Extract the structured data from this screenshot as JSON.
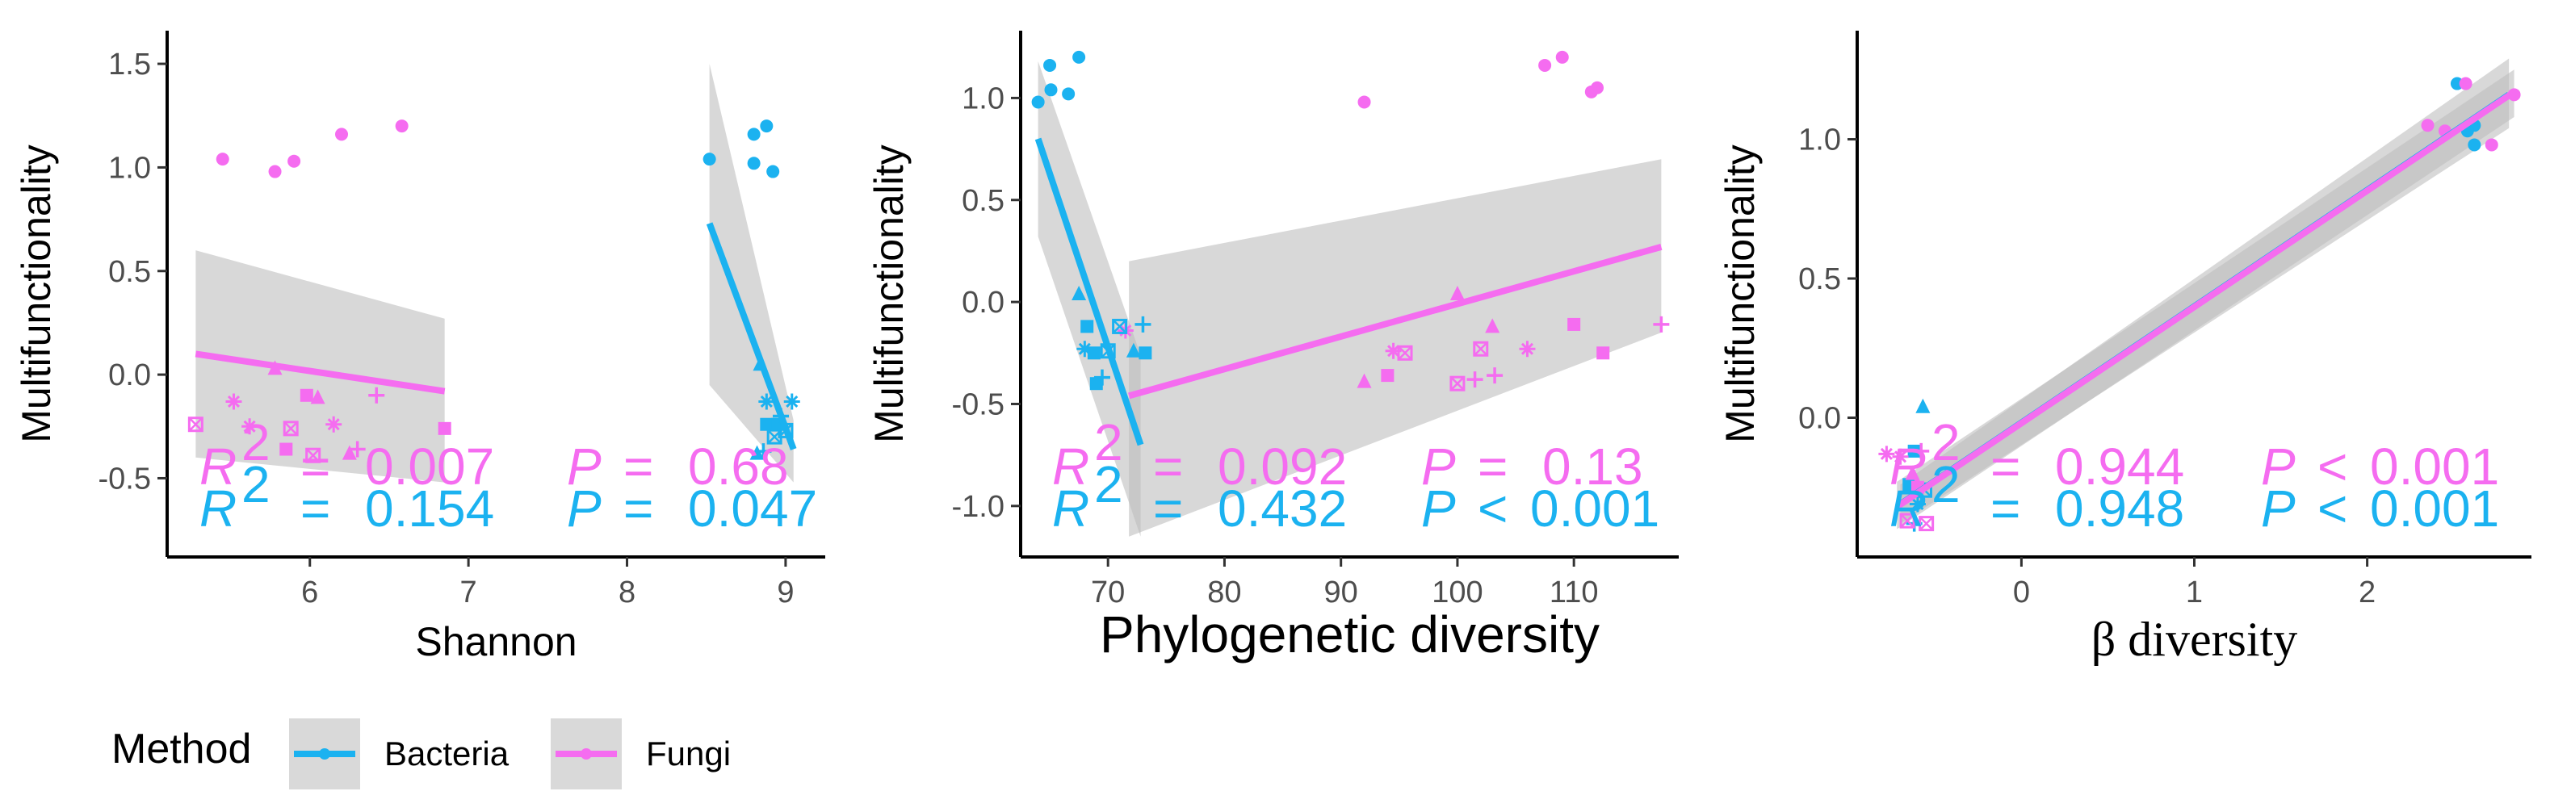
{
  "chart_data": [
    {
      "type": "scatter",
      "title": "",
      "xlabel": "Shannon",
      "ylabel": "Multifunctionality",
      "xlim": [
        5.1,
        9.25
      ],
      "ylim": [
        -0.88,
        1.66
      ],
      "xticks": [
        6,
        7,
        8,
        9
      ],
      "yticks": [
        -0.5,
        0.0,
        0.5,
        1.0,
        1.5
      ],
      "xtick_labels": [
        "6",
        "7",
        "8",
        "9"
      ],
      "ytick_labels": [
        "-0.5",
        "0.0",
        "0.5",
        "1.0",
        "1.5"
      ],
      "series": [
        {
          "name": "Fungi",
          "fit": {
            "x": [
              5.28,
              6.85
            ],
            "y": [
              0.1,
              -0.08
            ],
            "ci_upper": [
              0.6,
              0.27
            ],
            "ci_lower": [
              -0.4,
              -0.52
            ]
          },
          "points": [
            {
              "x": 5.45,
              "y": 1.04,
              "shape": "circle"
            },
            {
              "x": 5.78,
              "y": 0.98,
              "shape": "circle"
            },
            {
              "x": 5.9,
              "y": 1.03,
              "shape": "circle"
            },
            {
              "x": 6.2,
              "y": 1.16,
              "shape": "circle"
            },
            {
              "x": 6.58,
              "y": 1.2,
              "shape": "circle"
            },
            {
              "x": 5.28,
              "y": -0.24,
              "shape": "boxx"
            },
            {
              "x": 5.52,
              "y": -0.13,
              "shape": "asterisk"
            },
            {
              "x": 5.62,
              "y": -0.25,
              "shape": "asterisk"
            },
            {
              "x": 5.78,
              "y": 0.03,
              "shape": "triangle"
            },
            {
              "x": 5.85,
              "y": -0.36,
              "shape": "square"
            },
            {
              "x": 5.88,
              "y": -0.26,
              "shape": "boxx"
            },
            {
              "x": 5.98,
              "y": -0.1,
              "shape": "square"
            },
            {
              "x": 6.05,
              "y": -0.11,
              "shape": "triangle"
            },
            {
              "x": 6.02,
              "y": -0.39,
              "shape": "boxx"
            },
            {
              "x": 6.15,
              "y": -0.24,
              "shape": "asterisk"
            },
            {
              "x": 6.3,
              "y": -0.36,
              "shape": "plus"
            },
            {
              "x": 6.25,
              "y": -0.38,
              "shape": "triangle"
            },
            {
              "x": 6.42,
              "y": -0.1,
              "shape": "plus"
            },
            {
              "x": 6.85,
              "y": -0.26,
              "shape": "square"
            }
          ]
        },
        {
          "name": "Bacteria",
          "fit": {
            "x": [
              8.52,
              9.05
            ],
            "y": [
              0.73,
              -0.36
            ],
            "ci_upper": [
              1.5,
              -0.22
            ],
            "ci_lower": [
              -0.05,
              -0.52
            ]
          },
          "points": [
            {
              "x": 8.52,
              "y": 1.04,
              "shape": "circle"
            },
            {
              "x": 8.8,
              "y": 1.16,
              "shape": "circle"
            },
            {
              "x": 8.88,
              "y": 1.2,
              "shape": "circle"
            },
            {
              "x": 8.8,
              "y": 1.02,
              "shape": "circle"
            },
            {
              "x": 8.92,
              "y": 0.98,
              "shape": "circle"
            },
            {
              "x": 8.84,
              "y": 0.05,
              "shape": "triangle"
            },
            {
              "x": 8.88,
              "y": -0.13,
              "shape": "asterisk"
            },
            {
              "x": 9.04,
              "y": -0.13,
              "shape": "asterisk"
            },
            {
              "x": 8.88,
              "y": -0.24,
              "shape": "square"
            },
            {
              "x": 8.95,
              "y": -0.24,
              "shape": "square"
            },
            {
              "x": 8.93,
              "y": -0.3,
              "shape": "boxx"
            },
            {
              "x": 8.82,
              "y": -0.38,
              "shape": "triangle"
            },
            {
              "x": 8.86,
              "y": -0.37,
              "shape": "plus"
            },
            {
              "x": 9.0,
              "y": -0.27,
              "shape": "boxx"
            },
            {
              "x": 8.97,
              "y": -0.2,
              "shape": "plus"
            }
          ]
        }
      ],
      "annotations": [
        {
          "name": "Fungi",
          "r2": "0.007",
          "p": "0.68"
        },
        {
          "name": "Bacteria",
          "r2": "0.154",
          "p": "0.047"
        }
      ]
    },
    {
      "type": "scatter",
      "title": "",
      "xlabel": "Phylogenetic diversity",
      "ylabel": "Multifunctionality",
      "xlim": [
        62.5,
        119
      ],
      "ylim": [
        -1.25,
        1.33
      ],
      "xticks": [
        70,
        80,
        90,
        100,
        110
      ],
      "yticks": [
        -1.0,
        -0.5,
        0.0,
        0.5,
        1.0
      ],
      "xtick_labels": [
        "70",
        "80",
        "90",
        "100",
        "110"
      ],
      "ytick_labels": [
        "-1.0",
        "-0.5",
        "0.0",
        "0.5",
        "1.0"
      ],
      "series": [
        {
          "name": "Fungi",
          "fit": {
            "x": [
              71.8,
              117.5
            ],
            "y": [
              -0.46,
              0.27
            ],
            "ci_upper": [
              0.2,
              0.7
            ],
            "ci_lower": [
              -1.15,
              -0.15
            ]
          },
          "points": [
            {
              "x": 92,
              "y": 0.98,
              "shape": "circle"
            },
            {
              "x": 107.5,
              "y": 1.16,
              "shape": "circle"
            },
            {
              "x": 109,
              "y": 1.2,
              "shape": "circle"
            },
            {
              "x": 111.5,
              "y": 1.03,
              "shape": "circle"
            },
            {
              "x": 112,
              "y": 1.05,
              "shape": "circle"
            },
            {
              "x": 92,
              "y": -0.39,
              "shape": "triangle"
            },
            {
              "x": 94,
              "y": -0.36,
              "shape": "square"
            },
            {
              "x": 94.5,
              "y": -0.24,
              "shape": "asterisk"
            },
            {
              "x": 95.5,
              "y": -0.25,
              "shape": "boxx"
            },
            {
              "x": 100,
              "y": 0.04,
              "shape": "triangle"
            },
            {
              "x": 100,
              "y": -0.4,
              "shape": "boxx"
            },
            {
              "x": 101.5,
              "y": -0.38,
              "shape": "plus"
            },
            {
              "x": 102,
              "y": -0.23,
              "shape": "boxx"
            },
            {
              "x": 103.2,
              "y": -0.36,
              "shape": "plus"
            },
            {
              "x": 103,
              "y": -0.12,
              "shape": "triangle"
            },
            {
              "x": 106,
              "y": -0.23,
              "shape": "asterisk"
            },
            {
              "x": 110,
              "y": -0.11,
              "shape": "square"
            },
            {
              "x": 112.5,
              "y": -0.25,
              "shape": "square"
            },
            {
              "x": 117.5,
              "y": -0.11,
              "shape": "plus"
            },
            {
              "x": 71.5,
              "y": -0.14,
              "shape": "asterisk"
            }
          ]
        },
        {
          "name": "Bacteria",
          "fit": {
            "x": [
              64,
              72.8
            ],
            "y": [
              0.8,
              -0.7
            ],
            "ci_upper": [
              1.18,
              -0.26
            ],
            "ci_lower": [
              0.32,
              -1.15
            ]
          },
          "points": [
            {
              "x": 64,
              "y": 0.98,
              "shape": "circle"
            },
            {
              "x": 65,
              "y": 1.16,
              "shape": "circle"
            },
            {
              "x": 65.1,
              "y": 1.04,
              "shape": "circle"
            },
            {
              "x": 66.6,
              "y": 1.02,
              "shape": "circle"
            },
            {
              "x": 67.5,
              "y": 1.2,
              "shape": "circle"
            },
            {
              "x": 67.5,
              "y": 0.04,
              "shape": "triangle"
            },
            {
              "x": 68.2,
              "y": -0.12,
              "shape": "square"
            },
            {
              "x": 68,
              "y": -0.23,
              "shape": "asterisk"
            },
            {
              "x": 68.8,
              "y": -0.25,
              "shape": "square"
            },
            {
              "x": 69,
              "y": -0.4,
              "shape": "square"
            },
            {
              "x": 69.5,
              "y": -0.37,
              "shape": "plus"
            },
            {
              "x": 70,
              "y": -0.24,
              "shape": "boxx"
            },
            {
              "x": 71,
              "y": -0.12,
              "shape": "boxx"
            },
            {
              "x": 72.2,
              "y": -0.24,
              "shape": "triangle"
            },
            {
              "x": 73,
              "y": -0.11,
              "shape": "plus"
            },
            {
              "x": 73.2,
              "y": -0.25,
              "shape": "square"
            }
          ]
        }
      ],
      "annotations": [
        {
          "name": "Fungi",
          "r2": "0.092",
          "p": "0.13"
        },
        {
          "name": "Bacteria",
          "r2": "0.432",
          "p": "0.001"
        }
      ]
    },
    {
      "type": "scatter",
      "title": "",
      "xlabel": "β diversity",
      "ylabel": "Multifunctionality",
      "xlim": [
        -0.95,
        2.95
      ],
      "ylim": [
        -0.5,
        1.39
      ],
      "xticks": [
        0,
        1,
        2
      ],
      "yticks": [
        0.0,
        0.5,
        1.0
      ],
      "xtick_labels": [
        "0",
        "1",
        "2"
      ],
      "ytick_labels": [
        "0.0",
        "0.5",
        "1.0"
      ],
      "series": [
        {
          "name": "Bacteria",
          "fit": {
            "x": [
              -0.7,
              2.82
            ],
            "y": [
              -0.31,
              1.16
            ],
            "ci_upper": [
              -0.24,
              1.29
            ],
            "ci_lower": [
              -0.38,
              1.04
            ]
          },
          "points": [
            {
              "x": 2.52,
              "y": 1.2,
              "shape": "circle"
            },
            {
              "x": 2.62,
              "y": 1.05,
              "shape": "circle"
            },
            {
              "x": 2.58,
              "y": 1.03,
              "shape": "circle"
            },
            {
              "x": 2.62,
              "y": 0.98,
              "shape": "circle"
            },
            {
              "x": -0.57,
              "y": 0.04,
              "shape": "triangle"
            },
            {
              "x": -0.62,
              "y": -0.12,
              "shape": "square"
            },
            {
              "x": -0.65,
              "y": -0.24,
              "shape": "square"
            },
            {
              "x": -0.62,
              "y": -0.38,
              "shape": "plus"
            },
            {
              "x": -0.56,
              "y": -0.26,
              "shape": "boxx"
            },
            {
              "x": -0.6,
              "y": -0.31,
              "shape": "asterisk"
            }
          ]
        },
        {
          "name": "Fungi",
          "fit": {
            "x": [
              -0.72,
              2.85
            ],
            "y": [
              -0.32,
              1.17
            ],
            "ci_upper": [
              -0.23,
              1.25
            ],
            "ci_lower": [
              -0.4,
              1.08
            ]
          },
          "points": [
            {
              "x": 2.35,
              "y": 1.05,
              "shape": "circle"
            },
            {
              "x": 2.57,
              "y": 1.2,
              "shape": "circle"
            },
            {
              "x": 2.45,
              "y": 1.03,
              "shape": "circle"
            },
            {
              "x": 2.85,
              "y": 1.16,
              "shape": "circle"
            },
            {
              "x": 2.72,
              "y": 0.98,
              "shape": "circle"
            },
            {
              "x": -0.78,
              "y": -0.13,
              "shape": "asterisk"
            },
            {
              "x": -0.7,
              "y": -0.14,
              "shape": "asterisk"
            },
            {
              "x": -0.58,
              "y": -0.12,
              "shape": "plus"
            },
            {
              "x": -0.6,
              "y": -0.25,
              "shape": "square"
            },
            {
              "x": -0.55,
              "y": -0.38,
              "shape": "boxx"
            },
            {
              "x": -0.66,
              "y": -0.37,
              "shape": "boxx"
            },
            {
              "x": -0.63,
              "y": -0.2,
              "shape": "triangle"
            }
          ]
        }
      ],
      "annotations": [
        {
          "name": "Fungi",
          "r2": "0.944",
          "p": "0.001"
        },
        {
          "name": "Bacteria",
          "r2": "0.948",
          "p": "0.001"
        }
      ]
    }
  ],
  "legend": {
    "title": "Method",
    "items": [
      {
        "label": "Bacteria",
        "color": "#1BB2F0"
      },
      {
        "label": "Fungi",
        "color": "#F56CF0"
      }
    ]
  },
  "stat_labels": {
    "r": "R",
    "sq": "2",
    "eq": "=",
    "p": "P",
    "lt": "<"
  },
  "colors": {
    "Bacteria": "#1BB2F0",
    "Fungi": "#F56CF0",
    "ci": "#BEBEBE"
  }
}
